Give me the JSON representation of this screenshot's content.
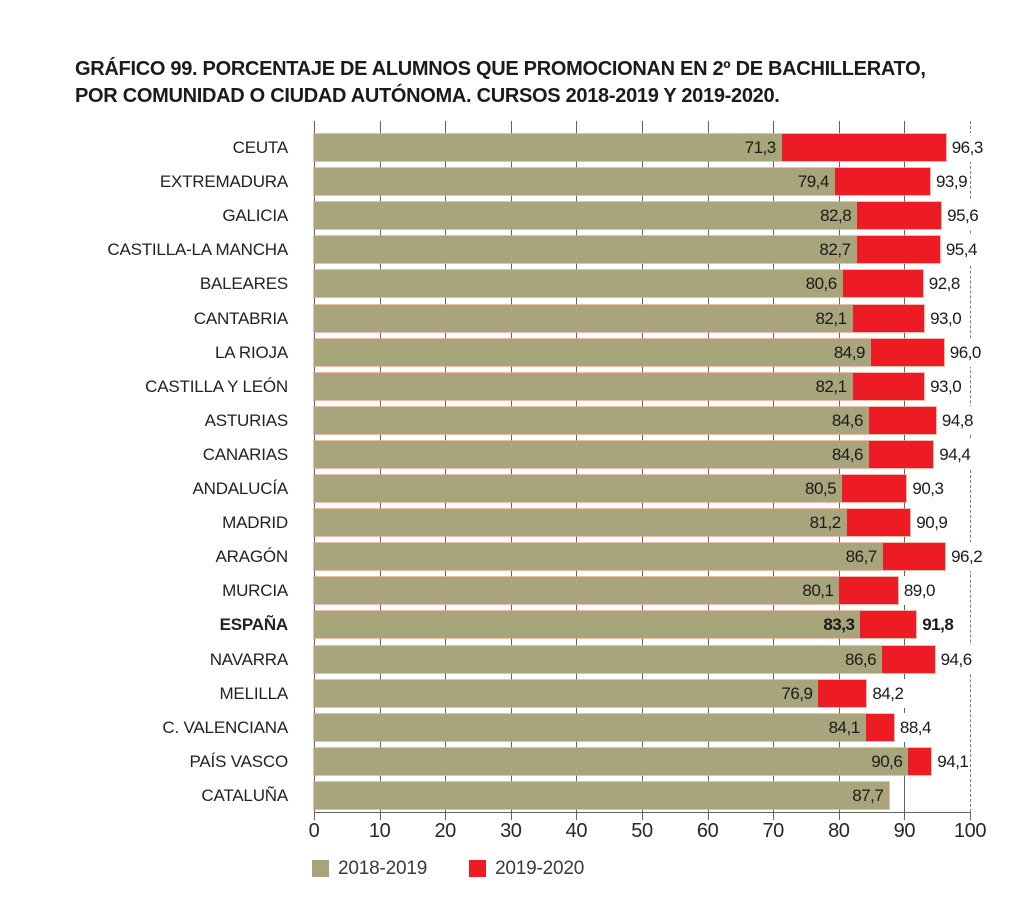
{
  "title": {
    "line1": "GRÁFICO 99. PORCENTAJE DE ALUMNOS QUE PROMOCIONAN EN 2º DE BACHILLERATO,",
    "line2": "POR COMUNIDAD O CIUDAD AUTÓNOMA. CURSOS 2018-2019 Y 2019-2020."
  },
  "chart_data": {
    "type": "bar",
    "orientation": "horizontal",
    "title": "GRÁFICO 99. PORCENTAJE DE ALUMNOS QUE PROMOCIONAN EN 2º DE BACHILLERATO, POR COMUNIDAD O CIUDAD AUTÓNOMA. CURSOS 2018-2019 Y 2019-2020.",
    "categories": [
      "CEUTA",
      "EXTREMADURA",
      "GALICIA",
      "CASTILLA-LA MANCHA",
      "BALEARES",
      "CANTABRIA",
      "LA RIOJA",
      "CASTILLA Y LEÓN",
      "ASTURIAS",
      "CANARIAS",
      "ANDALUCÍA",
      "MADRID",
      "ARAGÓN",
      "MURCIA",
      "ESPAÑA",
      "NAVARRA",
      "MELILLA",
      "C. VALENCIANA",
      "PAÍS VASCO",
      "CATALUÑA"
    ],
    "series": [
      {
        "name": "2018-2019",
        "color": "#a8a47c",
        "values": [
          71.3,
          79.4,
          82.8,
          82.7,
          80.6,
          82.1,
          84.9,
          82.1,
          84.6,
          84.6,
          80.5,
          81.2,
          86.7,
          80.1,
          83.3,
          86.6,
          76.9,
          84.1,
          90.6,
          87.7
        ]
      },
      {
        "name": "2019-2020",
        "color": "#ed1c24",
        "values": [
          96.3,
          93.9,
          95.6,
          95.4,
          92.8,
          93.0,
          96.0,
          93.0,
          94.8,
          94.4,
          90.3,
          90.9,
          96.2,
          89.0,
          91.8,
          94.6,
          84.2,
          88.4,
          94.1,
          null
        ]
      }
    ],
    "emphasis_category": "ESPAÑA",
    "xlim": [
      0,
      100
    ],
    "x_ticks": [
      0,
      10,
      20,
      30,
      40,
      50,
      60,
      70,
      80,
      90,
      100
    ],
    "decimal_separator": ",",
    "value_labels": "series1 inside bar end, series2 outside bar end",
    "grid": "vertical solid lines at 0-90, dashed line at 100",
    "legend_position": "bottom-left"
  },
  "legend": {
    "items": [
      {
        "label": "2018-2019",
        "color": "#a8a47c"
      },
      {
        "label": "2019-2020",
        "color": "#ed1c24"
      }
    ]
  },
  "colors": {
    "bar_2018_2019": "#a8a47c",
    "bar_2019_2020": "#ed1c24",
    "bar_outline": "#eaa58f",
    "gridline": "#636363",
    "text": "#1b1b19"
  }
}
